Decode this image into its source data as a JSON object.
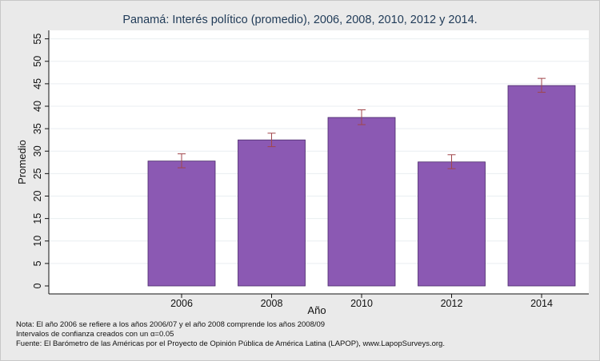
{
  "chart_data": {
    "type": "bar",
    "title": "Panamá: Interés político (promedio), 2006, 2008, 2010, 2012 y 2014.",
    "xlabel": "Año",
    "ylabel": "Promedio",
    "ylim": [
      0,
      57
    ],
    "yticks": [
      "0",
      "5",
      "10",
      "15",
      "20",
      "25",
      "30",
      "35",
      "40",
      "45",
      "50",
      "55"
    ],
    "categories": [
      "2006",
      "2008",
      "2010",
      "2012",
      "2014"
    ],
    "values": [
      27.8,
      32.5,
      37.5,
      27.6,
      44.6
    ],
    "error_low": [
      26.3,
      31.0,
      35.9,
      26.1,
      43.1
    ],
    "error_high": [
      29.4,
      34.0,
      39.2,
      29.2,
      46.2
    ],
    "grid": true,
    "legend": "none",
    "bar_color": "#8b59b3",
    "error_color": "#a0464b"
  },
  "notes": [
    "Nota: El año 2006 se refiere a los años 2006/07 y el año 2008 comprende los años 2008/09",
    "Intervalos de confianza creados con un α=0.05",
    "Fuente: El Barómetro de las Américas por el Proyecto de Opinión Pública de América Latina (LAPOP), www.LapopSurveys.org."
  ]
}
